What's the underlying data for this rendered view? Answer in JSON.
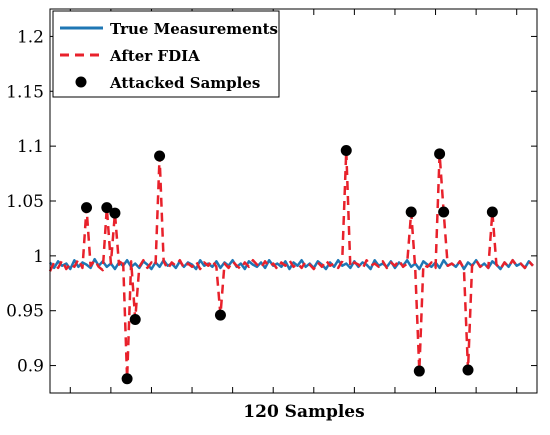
{
  "chart_data": {
    "type": "line",
    "xlabel": "120 Samples",
    "ylabel": "",
    "xlim": [
      0,
      120
    ],
    "ylim": [
      0.875,
      1.225
    ],
    "yticks": [
      0.9,
      0.95,
      1,
      1.05,
      1.1,
      1.15,
      1.2
    ],
    "ytick_labels": [
      "0.9",
      "0.95",
      "1",
      "1.05",
      "1.1",
      "1.15",
      "1.2"
    ],
    "xticks": [
      5,
      15,
      25,
      35,
      45,
      55,
      65,
      75,
      85,
      95,
      105,
      115
    ],
    "grid": false,
    "legend_position": "top-left",
    "legend": [
      "True Measurements",
      "After FDIA",
      "Attacked Samples"
    ],
    "colors": {
      "true_line": "#1f77b4",
      "fdia_line": "#e8212b",
      "markers": "#000000"
    },
    "true_measurements": [
      0.994,
      0.989,
      0.995,
      0.991,
      0.993,
      0.988,
      0.996,
      0.99,
      0.994,
      0.992,
      0.989,
      0.997,
      0.991,
      0.995,
      0.99,
      0.993,
      0.988,
      0.994,
      0.991,
      0.996,
      0.99,
      0.993,
      0.989,
      0.995,
      0.992,
      0.988,
      0.994,
      0.99,
      0.996,
      0.991,
      0.993,
      0.989,
      0.995,
      0.99,
      0.994,
      0.992,
      0.988,
      0.996,
      0.991,
      0.993,
      0.99,
      0.995,
      0.989,
      0.994,
      0.991,
      0.996,
      0.99,
      0.993,
      0.988,
      0.995,
      0.992,
      0.99,
      0.994,
      0.989,
      0.996,
      0.991,
      0.993,
      0.99,
      0.995,
      0.988,
      0.994,
      0.991,
      0.996,
      0.99,
      0.993,
      0.989,
      0.995,
      0.992,
      0.988,
      0.994,
      0.99,
      0.996,
      0.991,
      0.993,
      0.989,
      0.995,
      0.99,
      0.994,
      0.992,
      0.988,
      0.996,
      0.991,
      0.993,
      0.99,
      0.995,
      0.989,
      0.994,
      0.991,
      0.996,
      0.99,
      0.993,
      0.988,
      0.995,
      0.992,
      0.99,
      0.994,
      0.989,
      0.996,
      0.991,
      0.993,
      0.99,
      0.995,
      0.988,
      0.994,
      0.991,
      0.996,
      0.99,
      0.993,
      0.989,
      0.995,
      0.992,
      0.988,
      0.994,
      0.99,
      0.996,
      0.991,
      0.993,
      0.989,
      0.995,
      0.991
    ],
    "after_fdia": [
      0.986,
      0.994,
      0.989,
      0.996,
      0.988,
      0.993,
      0.99,
      0.997,
      0.989,
      1.044,
      0.991,
      0.996,
      0.99,
      0.987,
      1.044,
      0.993,
      1.039,
      0.992,
      0.997,
      0.888,
      0.995,
      0.942,
      0.99,
      0.996,
      0.989,
      0.994,
      0.991,
      1.091,
      0.995,
      0.988,
      0.994,
      0.991,
      0.996,
      0.989,
      0.993,
      0.99,
      0.995,
      0.988,
      0.994,
      0.991,
      0.996,
      0.99,
      0.946,
      0.993,
      0.989,
      0.995,
      0.991,
      0.988,
      0.994,
      0.99,
      0.996,
      0.992,
      0.989,
      0.995,
      0.99,
      0.993,
      0.988,
      0.994,
      0.991,
      0.996,
      0.99,
      0.993,
      0.989,
      0.995,
      0.992,
      0.988,
      0.994,
      0.99,
      0.996,
      0.991,
      0.993,
      0.989,
      0.995,
      1.096,
      0.99,
      0.994,
      0.992,
      0.988,
      0.996,
      0.991,
      0.993,
      0.99,
      0.995,
      0.989,
      0.994,
      0.991,
      0.996,
      0.99,
      0.993,
      1.04,
      0.988,
      0.895,
      0.992,
      0.99,
      0.994,
      0.989,
      1.093,
      1.04,
      0.991,
      0.993,
      0.99,
      0.995,
      0.988,
      0.896,
      0.991,
      0.996,
      0.99,
      0.993,
      0.989,
      1.04,
      0.992,
      0.988,
      0.994,
      0.99,
      0.996,
      0.991,
      0.993,
      0.989,
      0.995,
      0.991
    ],
    "attacked_samples": [
      {
        "x": 9,
        "y": 1.044
      },
      {
        "x": 14,
        "y": 1.044
      },
      {
        "x": 16,
        "y": 1.039
      },
      {
        "x": 19,
        "y": 0.888
      },
      {
        "x": 21,
        "y": 0.942
      },
      {
        "x": 27,
        "y": 1.091
      },
      {
        "x": 42,
        "y": 0.946
      },
      {
        "x": 73,
        "y": 1.096
      },
      {
        "x": 89,
        "y": 1.04
      },
      {
        "x": 91,
        "y": 0.895
      },
      {
        "x": 96,
        "y": 1.093
      },
      {
        "x": 97,
        "y": 1.04
      },
      {
        "x": 103,
        "y": 0.896
      },
      {
        "x": 109,
        "y": 1.04
      }
    ]
  }
}
